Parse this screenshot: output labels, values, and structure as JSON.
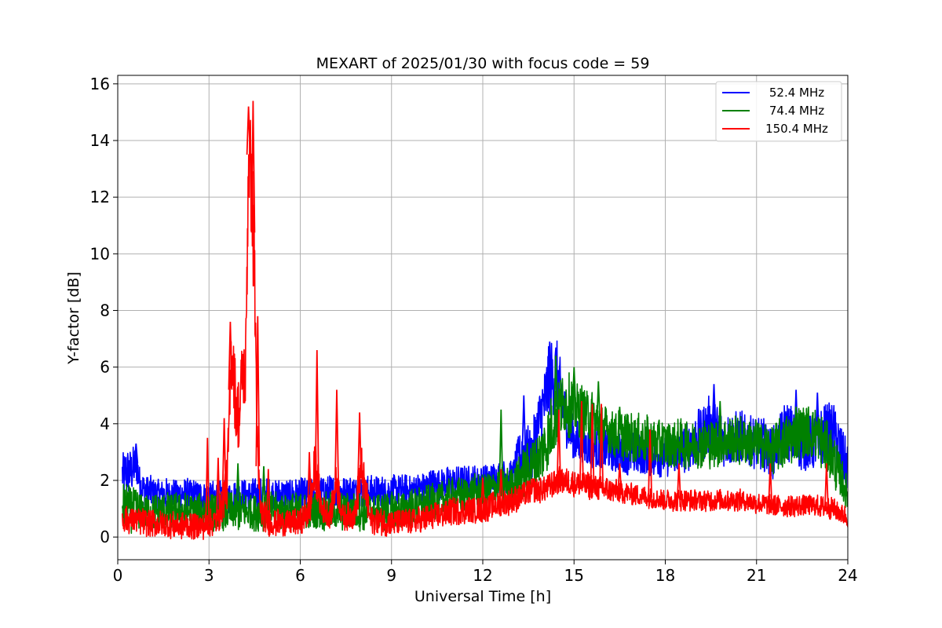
{
  "chart_data": {
    "type": "line",
    "title": "MEXART of 2025/01/30 with focus code = 59",
    "xlabel": "Universal Time [h]",
    "ylabel": "Y-factor [dB]",
    "xlim": [
      0,
      24
    ],
    "ylim": [
      -0.8,
      16.3
    ],
    "xticks": [
      0,
      3,
      6,
      9,
      12,
      15,
      18,
      21,
      24
    ],
    "yticks": [
      0,
      2,
      4,
      6,
      8,
      10,
      12,
      14,
      16
    ],
    "grid": true,
    "legend_position": "top-right",
    "series": [
      {
        "name": "52.4 MHz",
        "color": "#0000ff",
        "x": [
          0.15,
          0.3,
          0.45,
          0.6,
          0.75,
          1.0,
          1.5,
          2.0,
          2.5,
          3.0,
          3.5,
          4.0,
          4.5,
          5.0,
          6.0,
          7.0,
          8.0,
          9.0,
          10.0,
          10.5,
          11.0,
          12.0,
          12.5,
          13.0,
          13.3,
          13.6,
          13.9,
          14.2,
          14.4,
          14.6,
          14.8,
          15.0,
          15.5,
          16.0,
          16.5,
          17.0,
          17.5,
          18.0,
          18.5,
          19.0,
          19.5,
          20.0,
          20.5,
          21.0,
          21.5,
          22.0,
          22.5,
          23.0,
          23.5,
          23.8,
          24.0
        ],
        "y": [
          2.2,
          2.3,
          2.3,
          2.6,
          1.8,
          1.6,
          1.5,
          1.5,
          1.5,
          1.4,
          1.4,
          1.5,
          1.5,
          1.5,
          1.5,
          1.6,
          1.6,
          1.6,
          1.7,
          1.9,
          1.9,
          2.0,
          2.1,
          2.2,
          3.0,
          2.8,
          4.2,
          5.5,
          5.8,
          4.8,
          4.0,
          3.4,
          3.2,
          3.1,
          3.0,
          2.9,
          2.9,
          2.9,
          3.0,
          3.4,
          4.0,
          3.4,
          3.5,
          3.4,
          3.0,
          3.8,
          3.2,
          3.4,
          3.8,
          3.0,
          2.5
        ],
        "spread": [
          0.9,
          0.9,
          0.8,
          0.8,
          0.6,
          0.6,
          0.6,
          0.6,
          0.6,
          0.6,
          0.6,
          0.6,
          0.6,
          0.6,
          0.6,
          0.6,
          0.6,
          0.6,
          0.6,
          0.6,
          0.6,
          0.6,
          0.6,
          0.6,
          1.2,
          1.0,
          1.4,
          1.4,
          1.4,
          1.2,
          1.0,
          0.8,
          0.8,
          0.8,
          0.8,
          0.8,
          0.8,
          0.8,
          0.8,
          1.0,
          1.1,
          1.0,
          1.0,
          1.0,
          1.0,
          1.1,
          1.0,
          1.1,
          1.1,
          1.0,
          1.0
        ]
      },
      {
        "name": "74.4 MHz",
        "color": "#008000",
        "x": [
          0.15,
          0.5,
          0.8,
          1.0,
          2.0,
          3.0,
          4.0,
          5.0,
          6.0,
          7.0,
          8.0,
          9.0,
          10.0,
          11.0,
          12.0,
          12.6,
          13.0,
          13.3,
          13.5,
          13.8,
          14.1,
          14.4,
          14.7,
          15.0,
          15.3,
          15.6,
          16.0,
          16.5,
          17.0,
          17.5,
          18.0,
          18.5,
          19.0,
          19.5,
          20.0,
          20.5,
          21.0,
          21.5,
          22.0,
          22.5,
          23.0,
          23.5,
          24.0
        ],
        "y": [
          1.1,
          1.0,
          0.9,
          0.9,
          0.9,
          0.9,
          0.9,
          0.9,
          0.9,
          0.9,
          0.9,
          0.9,
          1.1,
          1.4,
          1.6,
          1.8,
          1.8,
          2.2,
          2.5,
          2.7,
          3.3,
          4.3,
          4.7,
          4.6,
          4.4,
          4.2,
          3.8,
          3.6,
          3.5,
          3.4,
          3.3,
          3.3,
          3.3,
          3.3,
          3.4,
          3.4,
          3.3,
          3.1,
          3.4,
          3.8,
          3.6,
          2.8,
          1.5
        ],
        "spread": [
          0.8,
          0.9,
          0.7,
          0.7,
          0.7,
          0.7,
          0.7,
          0.7,
          0.7,
          0.7,
          0.7,
          0.7,
          0.7,
          0.7,
          0.7,
          0.7,
          0.7,
          0.9,
          1.0,
          1.0,
          1.2,
          1.3,
          1.2,
          1.1,
          1.0,
          1.0,
          0.9,
          0.9,
          0.9,
          0.9,
          0.9,
          0.9,
          0.9,
          0.9,
          0.9,
          0.9,
          0.9,
          0.9,
          1.0,
          1.0,
          1.0,
          1.0,
          0.6
        ]
      },
      {
        "name": "150.4 MHz",
        "color": "#ff0000",
        "x": [
          0.15,
          0.5,
          1.0,
          2.0,
          2.8,
          3.3,
          3.6,
          3.75,
          3.9,
          4.0,
          4.1,
          4.2,
          4.3,
          4.4,
          4.5,
          4.6,
          4.7,
          5.0,
          5.5,
          6.0,
          6.3,
          6.5,
          6.7,
          7.0,
          7.2,
          7.4,
          7.8,
          8.0,
          8.3,
          9.0,
          10.0,
          11.0,
          12.0,
          13.0,
          13.5,
          14.0,
          14.5,
          15.0,
          15.5,
          16.0,
          16.5,
          17.0,
          17.5,
          18.0,
          18.5,
          19.0,
          19.5,
          20.0,
          20.5,
          21.0,
          21.5,
          22.0,
          22.5,
          23.0,
          23.5,
          24.0
        ],
        "y": [
          0.6,
          0.6,
          0.5,
          0.4,
          0.4,
          0.6,
          2.0,
          6.8,
          4.5,
          4.2,
          6.0,
          5.5,
          13.5,
          12.5,
          9.0,
          2.5,
          0.9,
          0.5,
          0.5,
          0.5,
          1.0,
          2.5,
          1.0,
          0.8,
          2.0,
          0.7,
          0.8,
          2.5,
          0.6,
          0.5,
          0.6,
          0.9,
          1.0,
          1.3,
          1.6,
          1.7,
          2.0,
          1.9,
          1.8,
          1.7,
          1.6,
          1.5,
          1.4,
          1.3,
          1.3,
          1.3,
          1.3,
          1.3,
          1.3,
          1.2,
          1.1,
          1.1,
          1.1,
          1.1,
          1.0,
          0.7
        ],
        "spread": [
          0.5,
          0.5,
          0.5,
          0.5,
          0.5,
          0.5,
          1.0,
          1.5,
          1.5,
          1.4,
          1.5,
          1.5,
          2.0,
          2.0,
          2.5,
          1.2,
          0.6,
          0.5,
          0.5,
          0.5,
          0.7,
          1.0,
          0.6,
          0.5,
          0.8,
          0.5,
          0.5,
          1.0,
          0.5,
          0.5,
          0.5,
          0.5,
          0.5,
          0.5,
          0.5,
          0.5,
          0.5,
          0.5,
          0.5,
          0.5,
          0.4,
          0.4,
          0.4,
          0.4,
          0.4,
          0.4,
          0.4,
          0.4,
          0.4,
          0.4,
          0.4,
          0.4,
          0.4,
          0.4,
          0.4,
          0.4
        ]
      }
    ],
    "spikes": [
      {
        "series": 0,
        "x": 0.6,
        "y": 3.3
      },
      {
        "series": 0,
        "x": 13.35,
        "y": 5.0
      },
      {
        "series": 0,
        "x": 14.2,
        "y": 6.9
      },
      {
        "series": 0,
        "x": 19.6,
        "y": 5.4
      },
      {
        "series": 0,
        "x": 22.3,
        "y": 5.2
      },
      {
        "series": 0,
        "x": 23.0,
        "y": 5.1
      },
      {
        "series": 1,
        "x": 3.95,
        "y": 2.6
      },
      {
        "series": 1,
        "x": 4.8,
        "y": 2.5
      },
      {
        "series": 1,
        "x": 12.6,
        "y": 4.5
      },
      {
        "series": 1,
        "x": 14.4,
        "y": 6.4
      },
      {
        "series": 1,
        "x": 15.0,
        "y": 6.0
      },
      {
        "series": 1,
        "x": 15.8,
        "y": 5.5
      },
      {
        "series": 1,
        "x": 16.5,
        "y": 4.6
      },
      {
        "series": 1,
        "x": 19.8,
        "y": 4.8
      },
      {
        "series": 1,
        "x": 22.3,
        "y": 4.6
      },
      {
        "series": 2,
        "x": 2.95,
        "y": 3.5
      },
      {
        "series": 2,
        "x": 3.3,
        "y": 2.8
      },
      {
        "series": 2,
        "x": 3.5,
        "y": 4.2
      },
      {
        "series": 2,
        "x": 3.7,
        "y": 7.6
      },
      {
        "series": 2,
        "x": 4.3,
        "y": 15.2
      },
      {
        "series": 2,
        "x": 4.45,
        "y": 15.4
      },
      {
        "series": 2,
        "x": 4.6,
        "y": 7.8
      },
      {
        "series": 2,
        "x": 4.95,
        "y": 2.4
      },
      {
        "series": 2,
        "x": 6.3,
        "y": 3.0
      },
      {
        "series": 2,
        "x": 6.55,
        "y": 6.6
      },
      {
        "series": 2,
        "x": 7.2,
        "y": 5.2
      },
      {
        "series": 2,
        "x": 7.95,
        "y": 4.4
      },
      {
        "series": 2,
        "x": 12.0,
        "y": 2.1
      },
      {
        "series": 2,
        "x": 12.6,
        "y": 2.4
      },
      {
        "series": 2,
        "x": 14.5,
        "y": 4.5
      },
      {
        "series": 2,
        "x": 15.25,
        "y": 4.8
      },
      {
        "series": 2,
        "x": 15.6,
        "y": 4.7
      },
      {
        "series": 2,
        "x": 15.9,
        "y": 4.7
      },
      {
        "series": 2,
        "x": 16.5,
        "y": 2.6
      },
      {
        "series": 2,
        "x": 17.5,
        "y": 3.8
      },
      {
        "series": 2,
        "x": 18.45,
        "y": 2.6
      },
      {
        "series": 2,
        "x": 21.45,
        "y": 2.6
      },
      {
        "series": 2,
        "x": 23.3,
        "y": 2.6
      }
    ]
  }
}
